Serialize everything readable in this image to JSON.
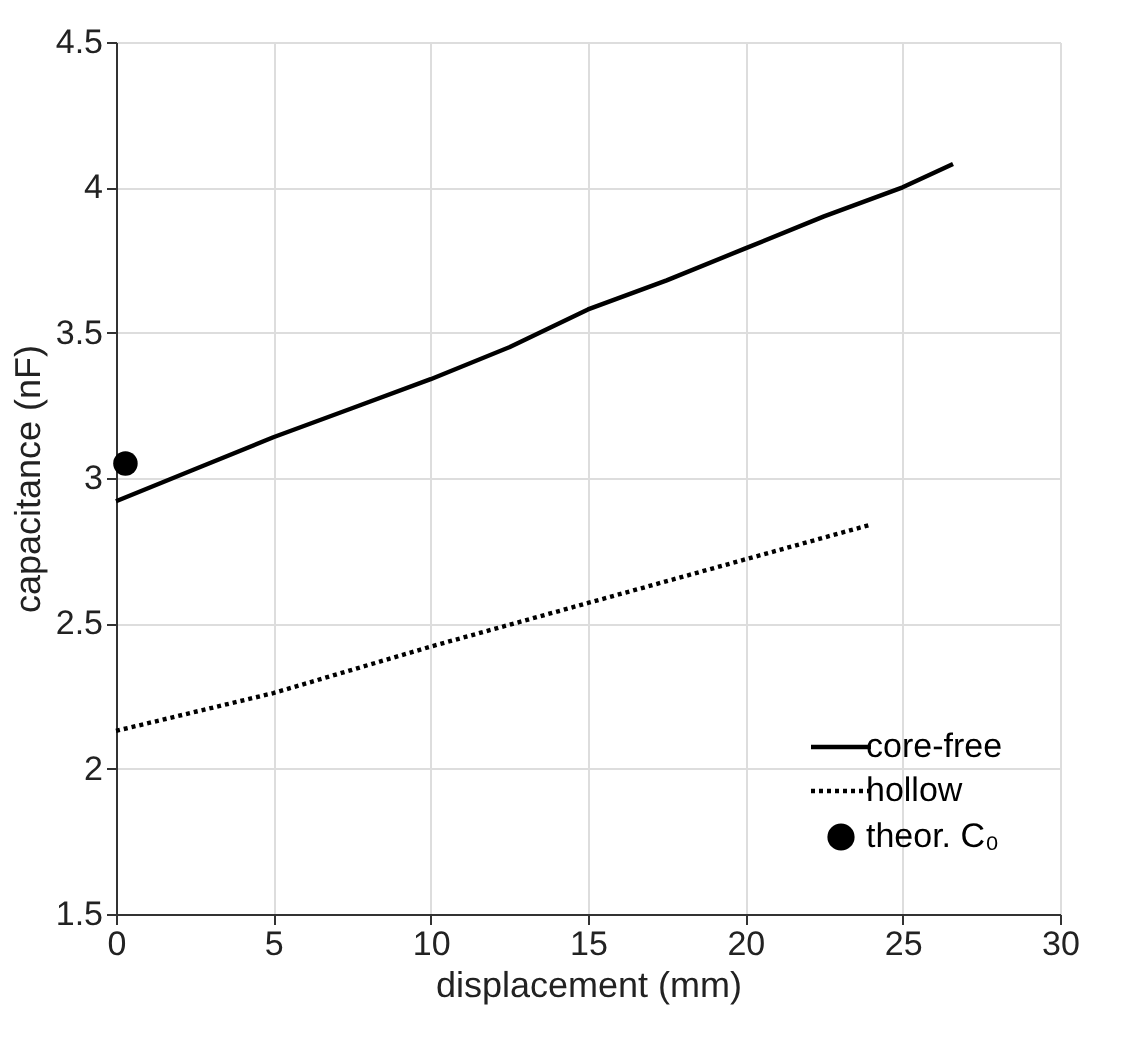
{
  "chart_data": {
    "type": "line",
    "xlabel": "displacement (mm)",
    "ylabel": "capacitance (nF)",
    "xlim": [
      0,
      30
    ],
    "xticks": [
      0,
      5,
      10,
      15,
      20,
      25,
      30
    ],
    "ylim": [
      1.5,
      4.5
    ],
    "yticks": [
      1.5,
      2,
      2.5,
      3,
      3.5,
      4,
      4.5
    ],
    "grid": true,
    "legend": "bottom right",
    "series": [
      {
        "name": "core-free",
        "line_style": "solid",
        "color": "#000000",
        "x": [
          0,
          2.5,
          5,
          7.5,
          10,
          12.5,
          15,
          17.5,
          20,
          22.5,
          25,
          26.6
        ],
        "values": [
          2.92,
          3.03,
          3.14,
          3.24,
          3.34,
          3.45,
          3.58,
          3.68,
          3.79,
          3.9,
          4.0,
          4.08
        ]
      },
      {
        "name": "hollow",
        "line_style": "dotted",
        "color": "#000000",
        "x": [
          0,
          5,
          10,
          15,
          20,
          24
        ],
        "values": [
          2.13,
          2.26,
          2.42,
          2.57,
          2.72,
          2.84
        ]
      },
      {
        "name": "theor. C₀",
        "type": "scatter",
        "marker": "circle",
        "color": "#000000",
        "x": [
          0.3
        ],
        "values": [
          3.05
        ]
      }
    ]
  }
}
